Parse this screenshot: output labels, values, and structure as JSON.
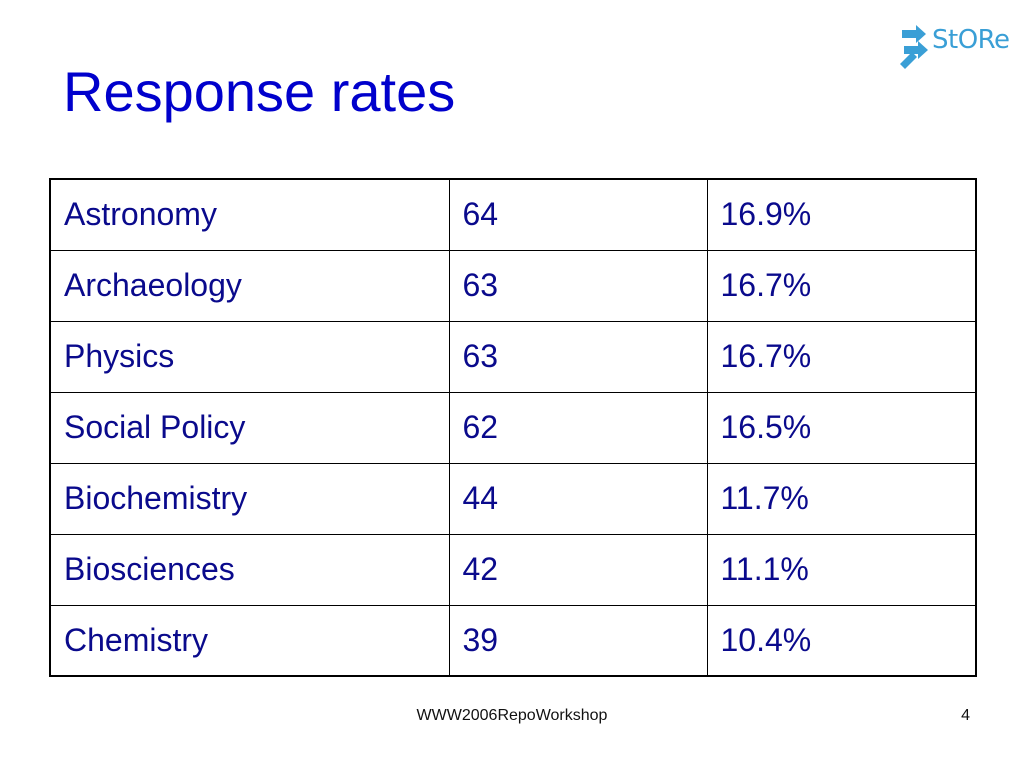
{
  "slide": {
    "title": "Response rates",
    "logo_text": "StORe",
    "footer": "WWW2006RepoWorkshop",
    "page_number": "4"
  },
  "table": {
    "rows": [
      {
        "subject": "Astronomy",
        "count": "64",
        "rate": "16.9%"
      },
      {
        "subject": "Archaeology",
        "count": "63",
        "rate": "16.7%"
      },
      {
        "subject": "Physics",
        "count": "63",
        "rate": "16.7%"
      },
      {
        "subject": "Social Policy",
        "count": "62",
        "rate": "16.5%"
      },
      {
        "subject": "Biochemistry",
        "count": "44",
        "rate": "11.7%"
      },
      {
        "subject": "Biosciences",
        "count": "42",
        "rate": "11.1%"
      },
      {
        "subject": "Chemistry",
        "count": "39",
        "rate": "10.4%"
      }
    ]
  },
  "colors": {
    "title": "#0000cc",
    "table_text": "#0a0a8c",
    "logo": "#3a9fd6"
  },
  "icons": {
    "logo": "store-arrows-icon"
  }
}
